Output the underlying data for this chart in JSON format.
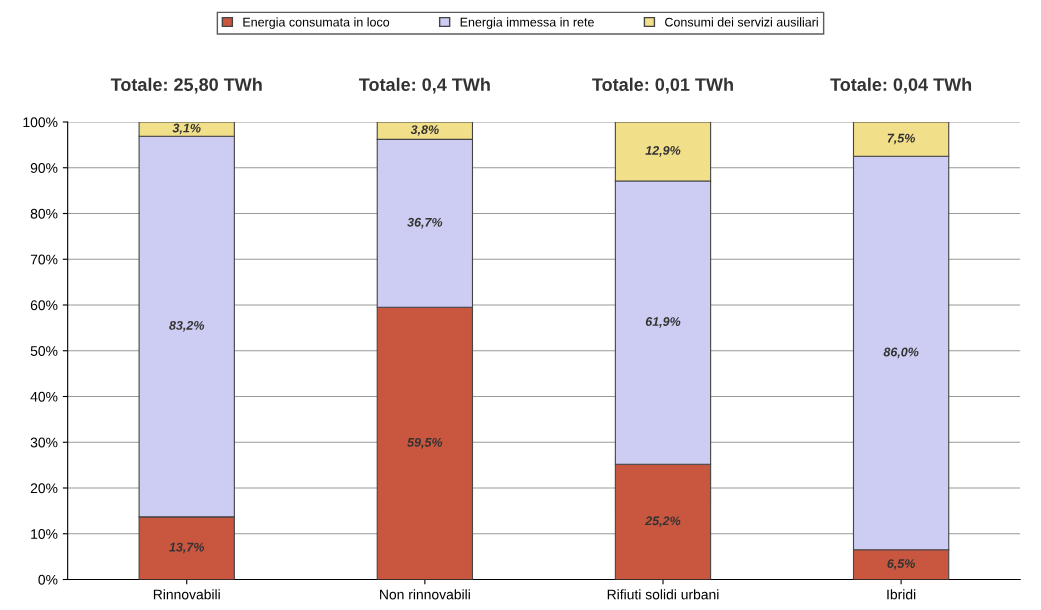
{
  "chart_data": {
    "type": "bar",
    "stacked": true,
    "categories": [
      "Rinnovabili",
      "Non rinnovabili",
      "Rifiuti solidi urbani",
      "Ibridi"
    ],
    "series": [
      {
        "name": "Energia consumata in loco",
        "color": "#c9563e",
        "values": [
          13.7,
          59.5,
          25.2,
          6.5
        ],
        "value_labels": [
          "13,7%",
          "59,5%",
          "25,2%",
          "6,5%"
        ]
      },
      {
        "name": "Energia immessa in rete",
        "color": "#cdcdf3",
        "values": [
          83.2,
          36.7,
          61.9,
          86.0
        ],
        "value_labels": [
          "83,2%",
          "36,7%",
          "61,9%",
          "86,0%"
        ]
      },
      {
        "name": "Consumi dei servizi ausiliari",
        "color": "#f2df8a",
        "values": [
          3.1,
          3.8,
          12.9,
          7.5
        ],
        "value_labels": [
          "3,1%",
          "3,8%",
          "12,9%",
          "7,5%"
        ]
      }
    ],
    "annotations": [
      "Totale: 25,80 TWh",
      "Totale: 0,4 TWh",
      "Totale: 0,01 TWh",
      "Totale: 0,04 TWh"
    ],
    "ylim": [
      0,
      100
    ],
    "yticks": [
      {
        "value": 0,
        "label": "0%"
      },
      {
        "value": 10,
        "label": "10%"
      },
      {
        "value": 20,
        "label": "20%"
      },
      {
        "value": 30,
        "label": "30%"
      },
      {
        "value": 40,
        "label": "40%"
      },
      {
        "value": 50,
        "label": "50%"
      },
      {
        "value": 60,
        "label": "60%"
      },
      {
        "value": 70,
        "label": "70%"
      },
      {
        "value": 80,
        "label": "80%"
      },
      {
        "value": 90,
        "label": "90%"
      },
      {
        "value": 100,
        "label": "100%"
      }
    ],
    "grid": "y",
    "legend": "top"
  }
}
